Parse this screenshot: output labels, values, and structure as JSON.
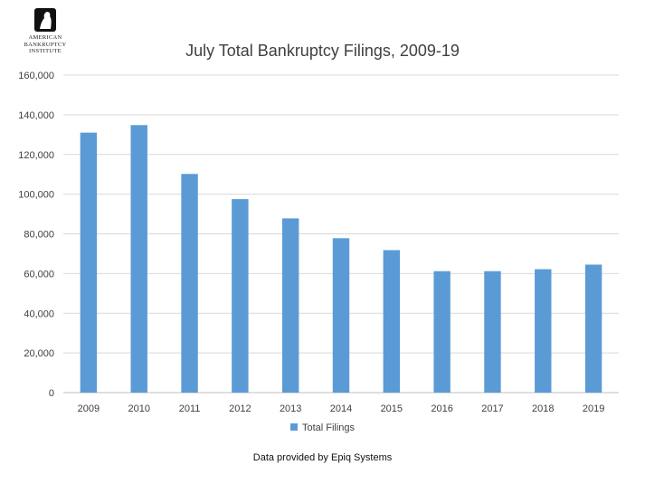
{
  "logo": {
    "icon": "abi-logo-icon",
    "lines": [
      "AMERICAN",
      "BANKRUPTCY",
      "INSTITUTE"
    ]
  },
  "colors": {
    "bar": "#5b9bd5",
    "grid": "#d9d9d9",
    "text": "#404040"
  },
  "chart_data": {
    "type": "bar",
    "title": "July Total Bankruptcy Filings, 2009-19",
    "categories": [
      "2009",
      "2010",
      "2011",
      "2012",
      "2013",
      "2014",
      "2015",
      "2016",
      "2017",
      "2018",
      "2019"
    ],
    "series": [
      {
        "name": "Total Filings",
        "values": [
          131000,
          134800,
          110200,
          97500,
          87800,
          77800,
          71800,
          61200,
          61200,
          62200,
          64500
        ]
      }
    ],
    "yticks": [
      "0",
      "20,000",
      "40,000",
      "60,000",
      "80,000",
      "100,000",
      "120,000",
      "140,000",
      "160,000"
    ],
    "ylim": [
      0,
      160000
    ],
    "xlabel": "",
    "ylabel": "",
    "grid": true,
    "legend": "bottom"
  },
  "footer": {
    "source": "Data provided by Epiq Systems"
  }
}
